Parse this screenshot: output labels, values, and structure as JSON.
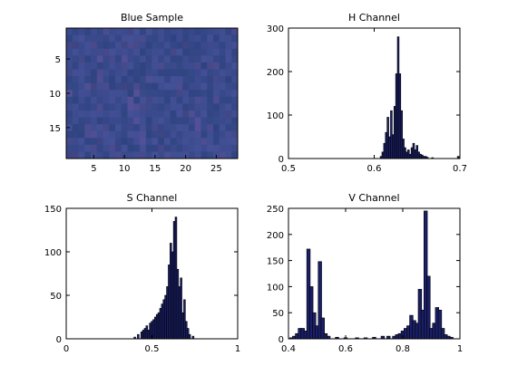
{
  "chart_data": [
    {
      "type": "heatmap",
      "title": "Blue Sample",
      "xticks": [
        5,
        10,
        15,
        20,
        25
      ],
      "yticks": [
        5,
        10,
        15
      ],
      "xlim": [
        0.5,
        28.5
      ],
      "ylim": [
        0.5,
        19.5
      ],
      "ncols": 28,
      "nrows": 19,
      "base_color": "#3a4a8c",
      "grid": false
    },
    {
      "type": "bar",
      "title": "H Channel",
      "xlim": [
        0.5,
        0.7
      ],
      "ylim": [
        0,
        300
      ],
      "xticks": [
        "0.5",
        "0.6",
        "0.7"
      ],
      "yticks": [
        "0",
        "100",
        "200",
        "300"
      ],
      "bar_color": "#1a1f66",
      "bin_width": 0.002,
      "x": [
        0.608,
        0.61,
        0.612,
        0.614,
        0.616,
        0.618,
        0.62,
        0.622,
        0.624,
        0.626,
        0.628,
        0.63,
        0.632,
        0.634,
        0.636,
        0.638,
        0.64,
        0.642,
        0.644,
        0.646,
        0.648,
        0.65,
        0.652,
        0.654,
        0.656,
        0.658,
        0.66,
        0.662,
        0.668,
        0.698
      ],
      "values": [
        5,
        15,
        35,
        60,
        95,
        50,
        110,
        55,
        120,
        195,
        280,
        195,
        110,
        45,
        25,
        15,
        20,
        10,
        25,
        35,
        20,
        30,
        15,
        10,
        8,
        5,
        5,
        3,
        2,
        5
      ]
    },
    {
      "type": "bar",
      "title": "S Channel",
      "xlim": [
        0,
        1
      ],
      "ylim": [
        0,
        150
      ],
      "xticks": [
        "0",
        "0.5",
        "1"
      ],
      "yticks": [
        "0",
        "50",
        "100",
        "150"
      ],
      "bar_color": "#1a1f66",
      "bin_width": 0.01,
      "x": [
        0.4,
        0.42,
        0.44,
        0.45,
        0.46,
        0.47,
        0.48,
        0.49,
        0.5,
        0.51,
        0.52,
        0.53,
        0.54,
        0.55,
        0.56,
        0.57,
        0.58,
        0.59,
        0.6,
        0.61,
        0.62,
        0.63,
        0.64,
        0.65,
        0.66,
        0.67,
        0.68,
        0.69,
        0.7,
        0.71,
        0.72,
        0.74
      ],
      "values": [
        2,
        5,
        8,
        10,
        12,
        15,
        10,
        18,
        20,
        22,
        25,
        28,
        30,
        35,
        40,
        45,
        50,
        60,
        85,
        110,
        100,
        135,
        140,
        80,
        60,
        70,
        30,
        45,
        20,
        12,
        5,
        3
      ]
    },
    {
      "type": "bar",
      "title": "V Channel",
      "xlim": [
        0.4,
        1
      ],
      "ylim": [
        0,
        250
      ],
      "xticks": [
        "0.4",
        "0.6",
        "0.8",
        "1"
      ],
      "yticks": [
        "0",
        "50",
        "100",
        "150",
        "200",
        "250"
      ],
      "bar_color": "#1a1f66",
      "bin_width": 0.012,
      "x": [
        0.41,
        0.42,
        0.43,
        0.44,
        0.45,
        0.46,
        0.47,
        0.48,
        0.49,
        0.5,
        0.51,
        0.52,
        0.53,
        0.54,
        0.57,
        0.6,
        0.64,
        0.67,
        0.7,
        0.73,
        0.75,
        0.77,
        0.78,
        0.79,
        0.8,
        0.81,
        0.82,
        0.83,
        0.84,
        0.85,
        0.86,
        0.87,
        0.88,
        0.89,
        0.9,
        0.91,
        0.92,
        0.93,
        0.94,
        0.95,
        0.96,
        0.97
      ],
      "values": [
        2,
        5,
        10,
        20,
        20,
        15,
        172,
        100,
        50,
        25,
        148,
        40,
        10,
        5,
        3,
        2,
        2,
        2,
        3,
        5,
        5,
        5,
        8,
        10,
        15,
        20,
        25,
        45,
        35,
        30,
        95,
        55,
        245,
        120,
        20,
        30,
        60,
        55,
        20,
        8,
        5,
        3
      ]
    }
  ]
}
